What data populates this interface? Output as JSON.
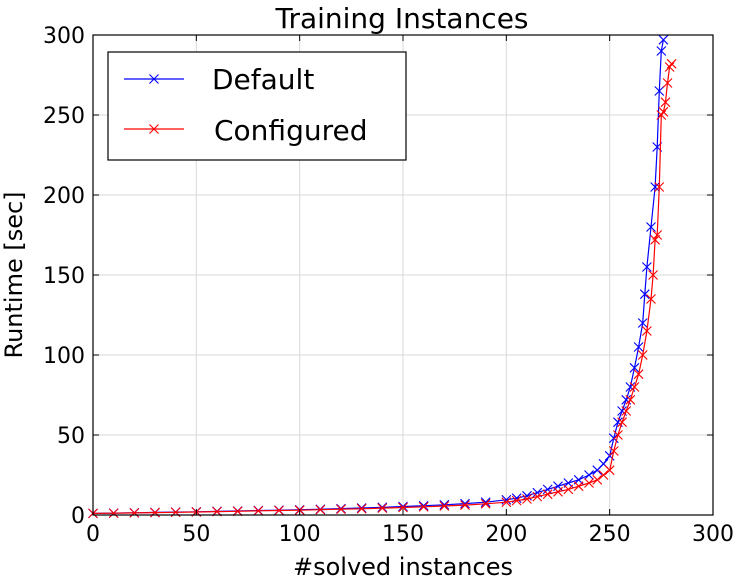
{
  "chart_data": {
    "type": "line",
    "title": "Training Instances",
    "xlabel": "#solved instances",
    "ylabel": "Runtime [sec]",
    "xlim": [
      0,
      300
    ],
    "ylim": [
      0,
      300
    ],
    "xticks": [
      0,
      50,
      100,
      150,
      200,
      250,
      300
    ],
    "yticks": [
      0,
      50,
      100,
      150,
      200,
      250,
      300
    ],
    "grid": true,
    "legend_position": "top-left",
    "marker": "x",
    "series": [
      {
        "name": "Default",
        "color": "#0000ff",
        "points": [
          [
            0,
            1.0
          ],
          [
            10,
            1.2
          ],
          [
            20,
            1.4
          ],
          [
            30,
            1.6
          ],
          [
            40,
            1.8
          ],
          [
            50,
            2.0
          ],
          [
            60,
            2.3
          ],
          [
            70,
            2.5
          ],
          [
            80,
            2.8
          ],
          [
            90,
            3.0
          ],
          [
            100,
            3.3
          ],
          [
            110,
            3.6
          ],
          [
            120,
            4.0
          ],
          [
            130,
            4.4
          ],
          [
            140,
            4.8
          ],
          [
            150,
            5.3
          ],
          [
            160,
            5.8
          ],
          [
            170,
            6.4
          ],
          [
            180,
            7.1
          ],
          [
            190,
            8.0
          ],
          [
            200,
            9.5
          ],
          [
            205,
            10.5
          ],
          [
            210,
            12.0
          ],
          [
            215,
            14.0
          ],
          [
            220,
            16.0
          ],
          [
            225,
            18.0
          ],
          [
            230,
            20.0
          ],
          [
            235,
            22.0
          ],
          [
            240,
            25.0
          ],
          [
            244,
            28.0
          ],
          [
            247,
            32.0
          ],
          [
            250,
            37.0
          ],
          [
            252,
            48.0
          ],
          [
            254,
            58.0
          ],
          [
            256,
            65.0
          ],
          [
            258,
            72.0
          ],
          [
            260,
            80.0
          ],
          [
            262,
            92.0
          ],
          [
            264,
            105.0
          ],
          [
            266,
            120.0
          ],
          [
            267,
            138.0
          ],
          [
            268,
            155.0
          ],
          [
            270,
            180.0
          ],
          [
            272,
            205.0
          ],
          [
            273,
            230.0
          ],
          [
            274,
            265.0
          ],
          [
            275,
            290.0
          ],
          [
            276,
            297.0
          ]
        ]
      },
      {
        "name": "Configured",
        "color": "#ff0000",
        "points": [
          [
            0,
            1.0
          ],
          [
            10,
            1.1
          ],
          [
            20,
            1.3
          ],
          [
            30,
            1.5
          ],
          [
            40,
            1.7
          ],
          [
            50,
            1.9
          ],
          [
            60,
            2.1
          ],
          [
            70,
            2.3
          ],
          [
            80,
            2.6
          ],
          [
            90,
            2.8
          ],
          [
            100,
            3.0
          ],
          [
            110,
            3.3
          ],
          [
            120,
            3.6
          ],
          [
            130,
            3.9
          ],
          [
            140,
            4.3
          ],
          [
            150,
            4.7
          ],
          [
            160,
            5.1
          ],
          [
            170,
            5.6
          ],
          [
            180,
            6.2
          ],
          [
            190,
            7.0
          ],
          [
            200,
            8.0
          ],
          [
            205,
            9.0
          ],
          [
            210,
            10.0
          ],
          [
            215,
            11.5
          ],
          [
            220,
            13.0
          ],
          [
            225,
            14.5
          ],
          [
            230,
            16.0
          ],
          [
            235,
            18.0
          ],
          [
            240,
            20.0
          ],
          [
            244,
            22.0
          ],
          [
            247,
            25.0
          ],
          [
            250,
            28.0
          ],
          [
            252,
            40.0
          ],
          [
            254,
            50.0
          ],
          [
            256,
            58.0
          ],
          [
            258,
            65.0
          ],
          [
            260,
            72.0
          ],
          [
            262,
            80.0
          ],
          [
            264,
            88.0
          ],
          [
            266,
            100.0
          ],
          [
            268,
            115.0
          ],
          [
            270,
            135.0
          ],
          [
            271,
            150.0
          ],
          [
            272,
            172.0
          ],
          [
            273,
            175.0
          ],
          [
            274,
            205.0
          ],
          [
            275,
            250.0
          ],
          [
            276,
            252.0
          ],
          [
            277,
            258.0
          ],
          [
            278,
            270.0
          ],
          [
            279,
            280.0
          ],
          [
            280,
            282.0
          ]
        ]
      }
    ]
  }
}
